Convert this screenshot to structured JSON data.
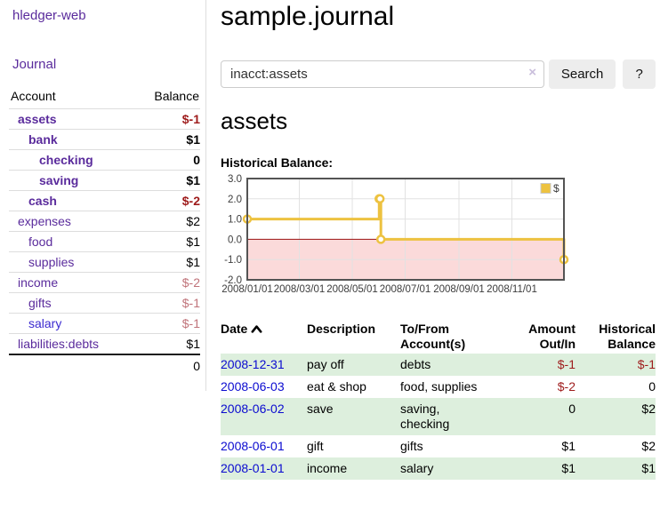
{
  "app": {
    "title": "hledger-web"
  },
  "colors": {
    "accent_purple": "#5a2b9c",
    "salary_link_blue": "#3c2bd0",
    "date_link_blue": "#0b0bd0",
    "negative_strong": "#9e1b1b",
    "negative_muted": "#c0737a",
    "row_stripe_green": "#ddefdd",
    "chart_line_yellow": "#edc240",
    "chart_negative_fill": "#fbdada",
    "chart_zero_line": "#9b1010"
  },
  "sidebar": {
    "journal_label": "Journal",
    "accounts_table": {
      "headers": {
        "account": "Account",
        "balance": "Balance"
      },
      "rows": [
        {
          "name": "assets",
          "depth": 1,
          "bold": true,
          "balance": "$-1",
          "tone": "neg"
        },
        {
          "name": "bank",
          "depth": 2,
          "bold": true,
          "balance": "$1",
          "tone": ""
        },
        {
          "name": "checking",
          "depth": 3,
          "bold": true,
          "balance": "0",
          "tone": ""
        },
        {
          "name": "saving",
          "depth": 3,
          "bold": true,
          "balance": "$1",
          "tone": ""
        },
        {
          "name": "cash",
          "depth": 2,
          "bold": true,
          "balance": "$-2",
          "tone": "neg"
        },
        {
          "name": "expenses",
          "depth": 1,
          "bold": false,
          "balance": "$2",
          "tone": ""
        },
        {
          "name": "food",
          "depth": 2,
          "bold": false,
          "balance": "$1",
          "tone": ""
        },
        {
          "name": "supplies",
          "depth": 2,
          "bold": false,
          "balance": "$1",
          "tone": ""
        },
        {
          "name": "income",
          "depth": 1,
          "bold": false,
          "balance": "$-2",
          "tone": "negmuted"
        },
        {
          "name": "gifts",
          "depth": 2,
          "bold": false,
          "balance": "$-1",
          "tone": "negmuted"
        },
        {
          "name": "salary",
          "depth": 2,
          "bold": false,
          "balance": "$-1",
          "tone": "negmuted",
          "link": "blue"
        },
        {
          "name": "liabilities:debts",
          "depth": 1,
          "bold": false,
          "balance": "$1",
          "tone": ""
        }
      ],
      "total": "0"
    }
  },
  "main": {
    "title": "sample.journal",
    "search": {
      "value": "inacct:assets",
      "clear_icon": "×",
      "button_label": "Search",
      "help_label": "?"
    },
    "account_heading": "assets",
    "chart_label": "Historical Balance:",
    "register_table": {
      "headers": [
        {
          "label": "Date",
          "sorted": "ascending"
        },
        {
          "label": "Description"
        },
        {
          "line1": "To/From",
          "line2": "Account(s)"
        },
        {
          "line1": "Amount",
          "line2": "Out/In"
        },
        {
          "line1": "Historical",
          "line2": "Balance"
        }
      ],
      "rows": [
        {
          "date": "2008-12-31",
          "description": "pay off",
          "accounts": "debts",
          "amount": "$-1",
          "amount_tone": "neg",
          "balance": "$-1",
          "balance_tone": "neg"
        },
        {
          "date": "2008-06-03",
          "description": "eat & shop",
          "accounts": "food, supplies",
          "amount": "$-2",
          "amount_tone": "neg",
          "balance": "0",
          "balance_tone": ""
        },
        {
          "date": "2008-06-02",
          "description": "save",
          "accounts": "saving, checking",
          "amount": "0",
          "amount_tone": "",
          "balance": "$2",
          "balance_tone": ""
        },
        {
          "date": "2008-06-01",
          "description": "gift",
          "accounts": "gifts",
          "amount": "$1",
          "amount_tone": "",
          "balance": "$2",
          "balance_tone": ""
        },
        {
          "date": "2008-01-01",
          "description": "income",
          "accounts": "salary",
          "amount": "$1",
          "amount_tone": "",
          "balance": "$1",
          "balance_tone": ""
        }
      ]
    }
  },
  "chart_data": {
    "type": "line",
    "title": "Historical Balance:",
    "step": true,
    "series": [
      {
        "name": "$",
        "color": "#edc240",
        "points": [
          [
            "2008-01-01",
            1
          ],
          [
            "2008-06-01",
            2
          ],
          [
            "2008-06-02",
            2
          ],
          [
            "2008-06-03",
            0
          ],
          [
            "2008-12-31",
            -1
          ]
        ]
      }
    ],
    "xlim": [
      "2008-01-01",
      "2008-12-31"
    ],
    "ylim": [
      -2,
      3
    ],
    "x_ticks": [
      "2008/01/01",
      "2008/03/01",
      "2008/05/01",
      "2008/07/01",
      "2008/09/01",
      "2008/11/01"
    ],
    "y_ticks": [
      "3.0",
      "2.0",
      "1.0",
      "0.0",
      "-1.0",
      "-2.0"
    ],
    "grid": true,
    "legend": {
      "label": "$",
      "position": "top-right"
    },
    "colors": {
      "line": "#edc240",
      "point_fill": "#ffffff",
      "negative_region_fill": "#fbdada",
      "zero_line": "#9b1010",
      "border": "#545454",
      "grid": "#e2e2e2",
      "tick_text": "#3c3c3c"
    }
  }
}
